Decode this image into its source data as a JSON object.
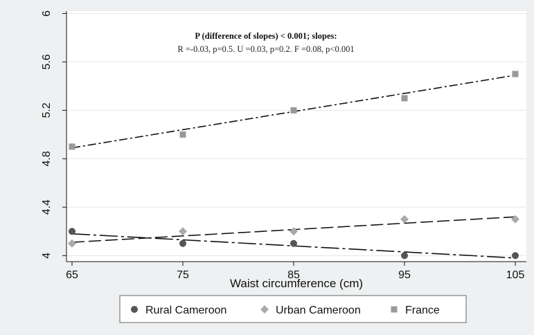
{
  "chart_data": {
    "type": "scatter",
    "title": "",
    "xlabel": "Waist circumference (cm)",
    "ylabel": "",
    "x": [
      65,
      75,
      85,
      95,
      105
    ],
    "xticks": [
      "65",
      "75",
      "85",
      "95",
      "105"
    ],
    "yticks": [
      "4",
      "4.4",
      "4.8",
      "5.2",
      "5.6",
      "6"
    ],
    "xlim": [
      64.5,
      106
    ],
    "ylim": [
      3.95,
      6.02
    ],
    "grid": "horizontal",
    "legend_position": "bottom",
    "annotation_line1": "P (difference of slopes) < 0.001; slopes:",
    "annotation_line2": "R =-0.03, p=0.5.  U =0.03, p=0.2.  F =0.08, p<0.001",
    "series": [
      {
        "name": "Rural Cameroon",
        "marker": "circle",
        "color": "#555555",
        "values": [
          4.2,
          4.1,
          4.1,
          4.0,
          4.0
        ],
        "fit": [
          4.18,
          3.98
        ],
        "line_dash": "26 5 4 5"
      },
      {
        "name": "Urban Cameroon",
        "marker": "diamond",
        "color": "#aaaaaa",
        "values": [
          4.1,
          4.2,
          4.2,
          4.3,
          4.3
        ],
        "fit": [
          4.11,
          4.32
        ],
        "line_dash": "18 6"
      },
      {
        "name": "France",
        "marker": "square",
        "color": "#999999",
        "values": [
          4.9,
          5.0,
          5.2,
          5.3,
          5.5
        ],
        "fit": [
          4.89,
          5.49
        ],
        "line_dash": "12 4 3 4"
      }
    ]
  }
}
